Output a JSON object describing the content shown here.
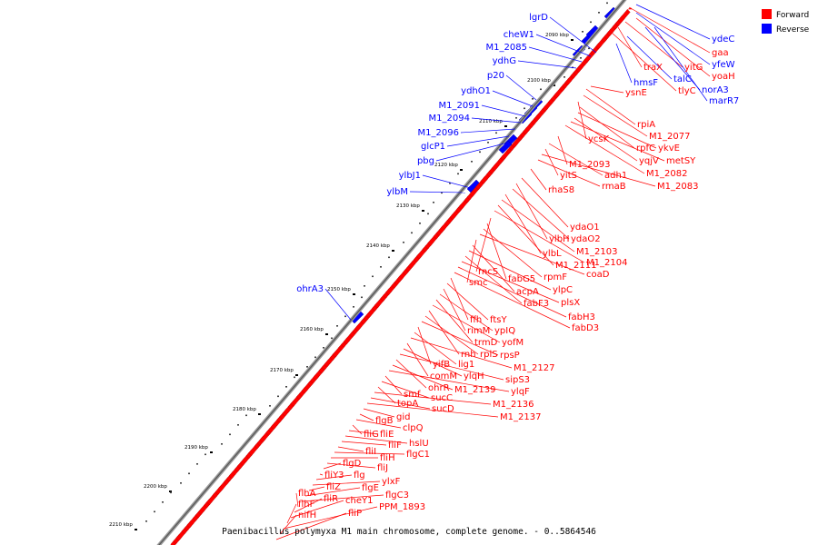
{
  "caption": "Paenibacillus polymyxa M1 main chromosome, complete genome. - 0..5864546",
  "legend": [
    {
      "label": "Forward",
      "color": "#ff0000"
    },
    {
      "label": "Reverse",
      "color": "#0000ff"
    }
  ],
  "scale_ticks": [
    "2090 kbp",
    "2100 kbp",
    "2110 kbp",
    "2120 kbp",
    "2130 kbp",
    "2140 kbp",
    "2150 kbp",
    "2160 kbp",
    "2170 kbp",
    "2180 kbp",
    "2190 kbp",
    "2200 kbp",
    "2210 kbp"
  ],
  "reverse_genes_left": [
    "lgrD",
    "cheW1",
    "M1_2085",
    "ydhG",
    "p20",
    "ydhO1",
    "M1_2091",
    "M1_2094",
    "M1_2096",
    "glcP1",
    "pbg",
    "ylbJ1",
    "ylbM",
    "ohrA3"
  ],
  "genes_right_top": [
    {
      "label": "ydeC",
      "strand": "reverse"
    },
    {
      "label": "gaa",
      "strand": "forward"
    },
    {
      "label": "yfeW",
      "strand": "reverse"
    },
    {
      "label": "yitG",
      "strand": "forward"
    },
    {
      "label": "traX",
      "strand": "forward"
    },
    {
      "label": "yoaH",
      "strand": "forward"
    },
    {
      "label": "talC",
      "strand": "reverse"
    },
    {
      "label": "hmsF",
      "strand": "reverse"
    },
    {
      "label": "norA3",
      "strand": "reverse"
    },
    {
      "label": "tlyC",
      "strand": "forward"
    },
    {
      "label": "ysnE",
      "strand": "forward"
    },
    {
      "label": "marR7",
      "strand": "reverse"
    }
  ],
  "forward_genes": [
    "rpiA",
    "M1_2077",
    "ycsK",
    "rpfC",
    "ykvE",
    "yqjV",
    "metSY",
    "M1_2082",
    "M1_2093",
    "adh1",
    "yitS",
    "M1_2083",
    "rmaB",
    "rhaS8",
    "ydaO1",
    "ylbH",
    "ydaO2",
    "ylbL",
    "M1_2103",
    "M1_2111",
    "M1_2104",
    "rncS",
    "fabG5",
    "rpmF",
    "coaD",
    "smc",
    "acpA",
    "ylpC",
    "fabF3",
    "plsX",
    "fabH3",
    "fabD3",
    "ffh",
    "ftsY",
    "rimM",
    "ypIQ",
    "trmD",
    "yofM",
    "rnh",
    "rplS",
    "rpsP",
    "yifB",
    "lig1",
    "M1_2127",
    "comM",
    "ylqH",
    "sipS3",
    "ohrR",
    "M1_2139",
    "ylqF",
    "smf",
    "sucC",
    "topA",
    "M1_2136",
    "sucD",
    "M1_2137",
    "gid",
    "flgB",
    "clpQ",
    "fliG",
    "fliE",
    "hslU",
    "fliF",
    "fliI",
    "flgC1",
    "fliH",
    "fliJ",
    "flgD",
    "fliY3",
    "flg",
    "ylxF",
    "fliZ",
    "flgE",
    "flgC3",
    "flhA",
    "fliR",
    "cheY1",
    "flhF",
    "PPM_1893",
    "nifH",
    "fliP"
  ]
}
